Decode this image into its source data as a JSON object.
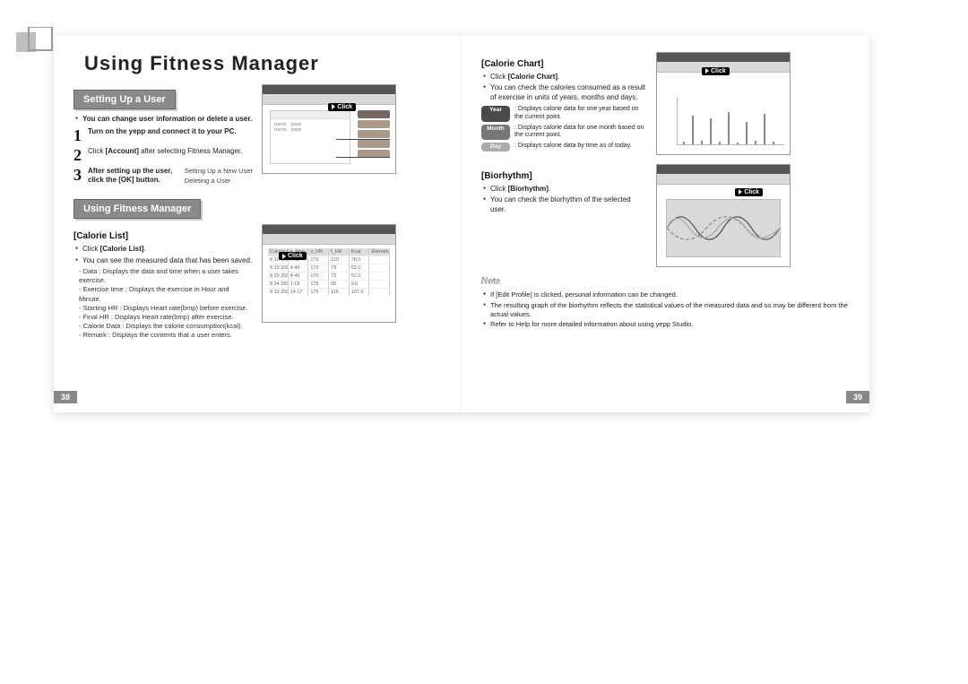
{
  "page_title": "Using Fitness Manager",
  "left": {
    "section1": {
      "heading": "Setting Up a User",
      "intro": "You can change user information or delete a user.",
      "steps": [
        {
          "n": "1",
          "text_bold": "Turn on the yepp and connect it to your PC."
        },
        {
          "n": "2",
          "text_pre": "Click ",
          "text_bold": "[Account]",
          "text_post": " after selecting Fitness Manager."
        },
        {
          "n": "3",
          "text_bold": "After setting up the user, click the [OK] button.",
          "aside1": "Setting Up a New User",
          "aside2": "Deleting a User"
        }
      ],
      "shot_click": "Click"
    },
    "section2": {
      "heading": "Using Fitness Manager",
      "sub": "[Calorie List]",
      "bullets": [
        {
          "pre": "Click ",
          "bold": "[Calorie List]",
          "post": "."
        },
        {
          "text": "You can see the measured data that has been saved."
        }
      ],
      "dashes": [
        "Data : Displays the data and time when a user takes exercise.",
        "Exercise time : Displays the exercise in Hour and Minute.",
        "Starting HR : Displays Heart rate(bmp) before exercise.",
        "Final HR : Displays Heart rate(bmp) after exercise.",
        "Calorie Data : Displays the calorie consumption(kcal).",
        "Remark : Displays the contents that a user enters."
      ],
      "shot_click": "Click",
      "table_header": [
        "Calorie List",
        "e_time",
        "s_HR",
        "f_HR",
        "Kcal",
        "Remark"
      ],
      "table_rows": [
        [
          "8 10 2003",
          "7:08",
          "170",
          "110",
          "78.0",
          ""
        ],
        [
          "8 13 2003",
          "4:46",
          "170",
          "73",
          "52.0",
          ""
        ],
        [
          "8 20 2003",
          "4:46",
          "170",
          "73",
          "52.0",
          ""
        ],
        [
          "8 24 2003",
          "1:18",
          "175",
          "65",
          "9.0",
          ""
        ],
        [
          "9 13 2003",
          "14:17",
          "175",
          "116",
          "107.0",
          ""
        ]
      ]
    },
    "pagenum": "38"
  },
  "right": {
    "sec_chart": {
      "sub": "[Calorie Chart]",
      "bullets": [
        {
          "pre": "Click ",
          "bold": "[Calorie Chart]",
          "post": "."
        },
        {
          "text": "You can check the calories consumed as a result of exercise in units of years, months and days."
        }
      ],
      "pills": [
        {
          "label": "Year",
          "cls": "pill-dark",
          "desc": ": Displays calorie data for one year based on the current point."
        },
        {
          "label": "Month",
          "cls": "pill-mid",
          "desc": ": Displays calorie data for one month based on the current point."
        },
        {
          "label": "Day",
          "cls": "pill-lite",
          "desc": ": Displays calorie data by time as of today."
        }
      ],
      "shot_click": "Click",
      "bar_heights_pct": [
        5,
        62,
        8,
        55,
        6,
        70,
        4,
        48,
        7,
        65,
        5
      ]
    },
    "sec_bio": {
      "sub": "[Biorhythm]",
      "bullets": [
        {
          "pre": "Click ",
          "bold": "[Biorhythm]",
          "post": "."
        },
        {
          "text": "You can check the biorhythm of the selected user."
        }
      ],
      "shot_click": "Click"
    },
    "note": {
      "heading": "Note",
      "items": [
        "If [Edit Profile] is clicked, personal information can be changed.",
        "The resulting graph of the biorhythm reflects the statistical values of the measured data and so may be different from the actual values.",
        "Refer to Help for more detailed information about using yepp Studio."
      ]
    },
    "pagenum": "39"
  }
}
